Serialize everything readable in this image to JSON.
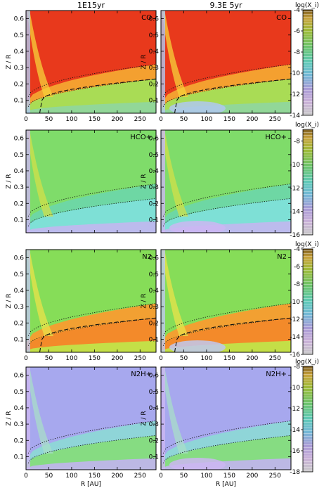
{
  "columns": [
    "1E15yr",
    "9.3E 5yr"
  ],
  "axes": {
    "ylabel": "Z / R",
    "xlabel": "R [AU]",
    "x_ticks": [
      0,
      50,
      100,
      150,
      200,
      250
    ],
    "y_ticks": [
      0.1,
      0.2,
      0.3,
      0.4,
      0.5,
      0.6
    ],
    "xlim": [
      0,
      285
    ],
    "ylim": [
      0.02,
      0.65
    ]
  },
  "colorbar_label": "log(X_i)",
  "chart_data": [
    {
      "type": "heatmap",
      "species": "CO",
      "panel_labels": [
        "CO",
        "CO"
      ],
      "colorbar_ticks": [
        -4,
        -6,
        -8,
        -10,
        -12,
        -14
      ],
      "colorbar_range": [
        -14,
        -4
      ],
      "x_axis_visible": true
    },
    {
      "type": "heatmap",
      "species": "HCO+",
      "panel_labels": [
        "HCO+",
        "HCO+"
      ],
      "colorbar_ticks": [
        -8,
        -10,
        -12,
        -14,
        -16
      ],
      "colorbar_range": [
        -16,
        -7
      ],
      "x_axis_visible": false
    },
    {
      "type": "heatmap",
      "species": "N2",
      "panel_labels": [
        "N2",
        "N2"
      ],
      "colorbar_ticks": [
        -4,
        -6,
        -8,
        -10,
        -12,
        -14,
        -16
      ],
      "colorbar_range": [
        -16,
        -4
      ],
      "x_axis_visible": true
    },
    {
      "type": "heatmap",
      "species": "N2H+",
      "panel_labels": [
        "N2H+",
        "N2H+"
      ],
      "colorbar_ticks": [
        -8,
        -10,
        -12,
        -14,
        -16,
        -18
      ],
      "colorbar_range": [
        -18,
        -8
      ],
      "x_axis_visible": true
    }
  ]
}
